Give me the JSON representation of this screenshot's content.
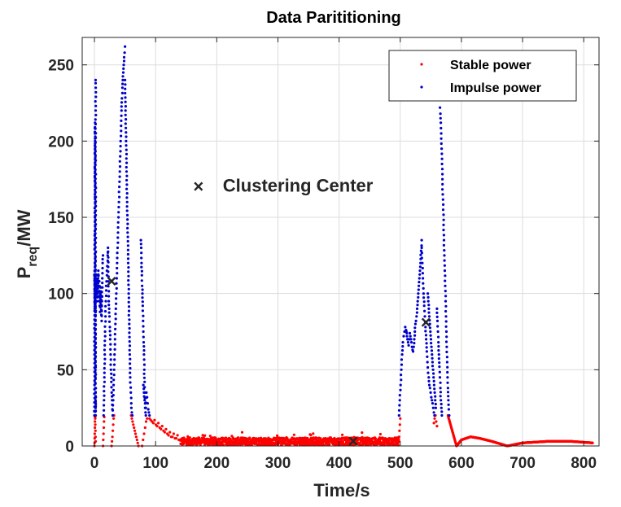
{
  "chart_data": {
    "type": "scatter",
    "title": "Data Parititioning",
    "xlabel": "Time/s",
    "ylabel_main": "P",
    "ylabel_sub": "req",
    "ylabel_unit": "/MW",
    "xlim": [
      -20,
      825
    ],
    "ylim": [
      0,
      268
    ],
    "xticks": [
      0,
      100,
      200,
      300,
      400,
      500,
      600,
      700,
      800
    ],
    "yticks": [
      0,
      50,
      100,
      150,
      200,
      250
    ],
    "grid": true,
    "legend": {
      "placement": "top-right",
      "entries": [
        {
          "label": "Stable power",
          "color": "#ff0000"
        },
        {
          "label": "Impulse power",
          "color": "#0000cc"
        }
      ]
    },
    "annotation": {
      "marker": "×",
      "text": "Clustering Center",
      "x": 170,
      "y": 171
    },
    "cluster_centers": [
      {
        "x": 28,
        "y": 109
      },
      {
        "x": 423,
        "y": 4
      },
      {
        "x": 542,
        "y": 82
      }
    ],
    "series": [
      {
        "name": "Impulse power",
        "color": "#0000cc",
        "traces": [
          {
            "x0": 0,
            "x1": 2,
            "pts": [
              20,
              40,
              60,
              80,
              100,
              110,
              115,
              105,
              95,
              90,
              100,
              112,
              120,
              135,
              150,
              165,
              180,
              195,
              205,
              212,
              200,
              185,
              170,
              160,
              145,
              130,
              118,
              108,
              96,
              85,
              70,
              55,
              45,
              38,
              30,
              25,
              20,
              238,
              240
            ]
          },
          {
            "x0": 2,
            "x1": 14,
            "pts": [
              110,
              105,
              100,
              112,
              108,
              95,
              100,
              110,
              115,
              105,
              98,
              108,
              92,
              88,
              100,
              104,
              96,
              86,
              82,
              95,
              110,
              120,
              125
            ]
          },
          {
            "x0": 15,
            "x1": 30,
            "pts": [
              20,
              30,
              45,
              60,
              75,
              85,
              95,
              102,
              108,
              112,
              118,
              125,
              130,
              108,
              95,
              90,
              85,
              78,
              70,
              60,
              50,
              42,
              35,
              30,
              24,
              20
            ]
          },
          {
            "x0": 30,
            "x1": 50,
            "pts": [
              20,
              30,
              40,
              50,
              60,
              70,
              80,
              90,
              100,
              110,
              120,
              130,
              140,
              150,
              160,
              170,
              180,
              190,
              200,
              210,
              220,
              228,
              235,
              240,
              245,
              250,
              255,
              258,
              262
            ]
          },
          {
            "x0": 50,
            "x1": 62,
            "pts": [
              240,
              220,
              200,
              180,
              160,
              140,
              120,
              100,
              80,
              60,
              45,
              35,
              28,
              22,
              20
            ]
          },
          {
            "x0": 76,
            "x1": 84,
            "pts": [
              135,
              130,
              120,
              112,
              105,
              100,
              92,
              82,
              75,
              68,
              60,
              50,
              42,
              35,
              28,
              22,
              20
            ]
          },
          {
            "x0": 80,
            "x1": 90,
            "pts": [
              40,
              35,
              30,
              28,
              25,
              35,
              32,
              28,
              24,
              22,
              20
            ]
          },
          {
            "x0": 498,
            "x1": 512,
            "pts": [
              20,
              30,
              40,
              50,
              60,
              68,
              72,
              75,
              78,
              76,
              74,
              70
            ]
          },
          {
            "x0": 510,
            "x1": 535,
            "pts": [
              75,
              72,
              70,
              68,
              66,
              70,
              74,
              72,
              70,
              68,
              65,
              63,
              62,
              65,
              70,
              75,
              80,
              82,
              85,
              90,
              95,
              100,
              105,
              110,
              115,
              120,
              128,
              135
            ]
          },
          {
            "x0": 535,
            "x1": 556,
            "pts": [
              130,
              120,
              110,
              100,
              92,
              85,
              78,
              70,
              62,
              55,
              48,
              45,
              40,
              38,
              35,
              32,
              30,
              28,
              25,
              22,
              20
            ]
          },
          {
            "x0": 545,
            "x1": 558,
            "pts": [
              100,
              95,
              90,
              85,
              80,
              75,
              70,
              65,
              60,
              55,
              50,
              45,
              40,
              35,
              30,
              25
            ]
          },
          {
            "x0": 560,
            "x1": 568,
            "pts": [
              90,
              82,
              75,
              68,
              60,
              52,
              45,
              38,
              30,
              25,
              20
            ]
          },
          {
            "x0": 565,
            "x1": 580,
            "pts": [
              222,
              218,
              212,
              205,
              195,
              185,
              175,
              165,
              155,
              145,
              135,
              125,
              115,
              105,
              95,
              85,
              75,
              65,
              55,
              45,
              38,
              30,
              24,
              20
            ]
          }
        ]
      },
      {
        "name": "Stable power",
        "color": "#ff0000",
        "traces": [
          {
            "x0": 0,
            "x1": 2,
            "pts": [
              0,
              2,
              5,
              8,
              12,
              16,
              19,
              18,
              14,
              10,
              6,
              3
            ]
          },
          {
            "x0": 14,
            "x1": 16,
            "pts": [
              0,
              4,
              8,
              12,
              16,
              19
            ]
          },
          {
            "x0": 28,
            "x1": 32,
            "pts": [
              0,
              3,
              6,
              10,
              14,
              18,
              20
            ]
          },
          {
            "x0": 60,
            "x1": 72,
            "pts": [
              20,
              18,
              16,
              14,
              12,
              10,
              8,
              6,
              4,
              2,
              0
            ]
          },
          {
            "x0": 78,
            "x1": 86,
            "pts": [
              0,
              4,
              8,
              12,
              16,
              18
            ]
          },
          {
            "x0": 90,
            "x1": 140,
            "pts": [
              18,
              17,
              16,
              15,
              17,
              14,
              13,
              15,
              12,
              11,
              13,
              10,
              9,
              11,
              8,
              7,
              9,
              6,
              6,
              8,
              5,
              5,
              7,
              4,
              4
            ]
          },
          {
            "x0": 140,
            "x1": 498,
            "noise": {
              "base": 3,
              "amp": 5
            }
          },
          {
            "x0": 498,
            "x1": 500,
            "pts": [
              6,
              10,
              14,
              18
            ]
          },
          {
            "x0": 555,
            "x1": 560,
            "pts": [
              15,
              18,
              20,
              16,
              13
            ]
          },
          {
            "x0": 578,
            "x1": 815,
            "curve": [
              [
                578,
                20
              ],
              [
                585,
                10
              ],
              [
                592,
                0
              ],
              [
                600,
                4
              ],
              [
                615,
                6
              ],
              [
                630,
                5
              ],
              [
                650,
                3
              ],
              [
                675,
                0
              ],
              [
                700,
                2
              ],
              [
                740,
                3
              ],
              [
                780,
                3
              ],
              [
                815,
                2
              ]
            ]
          }
        ]
      }
    ]
  }
}
